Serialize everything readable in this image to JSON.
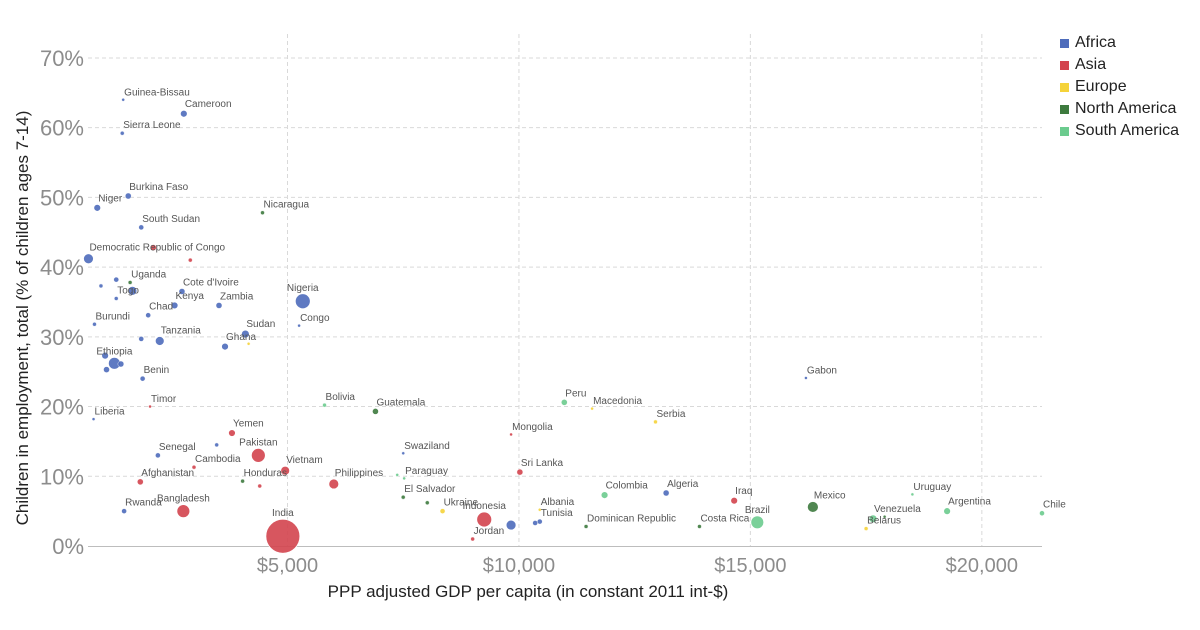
{
  "chart_data": {
    "type": "scatter",
    "xlabel": "PPP adjusted GDP per capita (in constant 2011 int-$)",
    "ylabel": "Children in employment, total (% of children ages 7-14)",
    "xlim": [
      690,
      21300
    ],
    "ylim": [
      0,
      72
    ],
    "xticks": [
      {
        "v": 5000,
        "label": "$5,000"
      },
      {
        "v": 10000,
        "label": "$10,000"
      },
      {
        "v": 15000,
        "label": "$15,000"
      },
      {
        "v": 20000,
        "label": "$20,000"
      }
    ],
    "yticks": [
      {
        "v": 0,
        "label": "0%"
      },
      {
        "v": 10,
        "label": "10%"
      },
      {
        "v": 20,
        "label": "20%"
      },
      {
        "v": 30,
        "label": "30%"
      },
      {
        "v": 40,
        "label": "40%"
      },
      {
        "v": 50,
        "label": "50%"
      },
      {
        "v": 60,
        "label": "60%"
      },
      {
        "v": 70,
        "label": "70%"
      }
    ],
    "grid": true,
    "legend_position": "top-right",
    "legend": [
      {
        "name": "Africa",
        "color": "#4e6cbb"
      },
      {
        "name": "Asia",
        "color": "#d3444e"
      },
      {
        "name": "Europe",
        "color": "#f5d33a"
      },
      {
        "name": "North America",
        "color": "#3d7a3e"
      },
      {
        "name": "South America",
        "color": "#6bcb8e"
      }
    ],
    "points": [
      {
        "label": "Guinea-Bissau",
        "x": 1450,
        "y": 64,
        "r": 1.5,
        "region": "Africa"
      },
      {
        "label": "Cameroon",
        "x": 2760,
        "y": 62,
        "r": 3.5,
        "region": "Africa"
      },
      {
        "label": "Sierra Leone",
        "x": 1430,
        "y": 59.2,
        "r": 2,
        "region": "Africa"
      },
      {
        "label": "Burkina Faso",
        "x": 1560,
        "y": 50.2,
        "r": 3,
        "region": "Africa"
      },
      {
        "label": "Niger",
        "x": 890,
        "y": 48.5,
        "r": 3.5,
        "region": "Africa"
      },
      {
        "label": "Nicaragua",
        "x": 4460,
        "y": 47.8,
        "r": 2,
        "region": "North America"
      },
      {
        "label": "South Sudan",
        "x": 1840,
        "y": 45.7,
        "r": 2.5,
        "region": "Africa"
      },
      {
        "label": "Democratic Republic of Congo",
        "x": 700,
        "y": 41.2,
        "r": 5,
        "region": "Africa"
      },
      {
        "label": "",
        "x": 2100,
        "y": 42.8,
        "r": 3,
        "region": "Asia"
      },
      {
        "label": "",
        "x": 2900,
        "y": 41,
        "r": 2,
        "region": "Asia"
      },
      {
        "label": "",
        "x": 1300,
        "y": 38.2,
        "r": 2.5,
        "region": "Africa"
      },
      {
        "label": "Uganda",
        "x": 1600,
        "y": 37.8,
        "r": 2,
        "region": "North America"
      },
      {
        "label": "",
        "x": 970,
        "y": 37.3,
        "r": 2,
        "region": "Africa"
      },
      {
        "label": "",
        "x": 1650,
        "y": 36.6,
        "r": 4.5,
        "region": "Africa"
      },
      {
        "label": "Togo",
        "x": 1300,
        "y": 35.5,
        "r": 2,
        "region": "Africa"
      },
      {
        "label": "Cote d'Ivoire",
        "x": 2720,
        "y": 36.5,
        "r": 3,
        "region": "Africa"
      },
      {
        "label": "Nigeria",
        "x": 5330,
        "y": 35.1,
        "r": 7.5,
        "region": "Africa"
      },
      {
        "label": "Kenya",
        "x": 2560,
        "y": 34.5,
        "r": 3.5,
        "region": "Africa"
      },
      {
        "label": "Zambia",
        "x": 3520,
        "y": 34.5,
        "r": 3,
        "region": "Africa"
      },
      {
        "label": "Chad",
        "x": 1990,
        "y": 33.1,
        "r": 2.5,
        "region": "Africa"
      },
      {
        "label": "Burundi",
        "x": 830,
        "y": 31.8,
        "r": 2,
        "region": "Africa"
      },
      {
        "label": "Congo",
        "x": 5250,
        "y": 31.6,
        "r": 1.5,
        "region": "Africa"
      },
      {
        "label": "Sudan",
        "x": 4090,
        "y": 30.4,
        "r": 4,
        "region": "Africa"
      },
      {
        "label": "",
        "x": 4160,
        "y": 29,
        "r": 1.5,
        "region": "Europe"
      },
      {
        "label": "",
        "x": 1840,
        "y": 29.7,
        "r": 2.5,
        "region": "Africa"
      },
      {
        "label": "Tanzania",
        "x": 2240,
        "y": 29.4,
        "r": 4.5,
        "region": "Africa"
      },
      {
        "label": "Ghana",
        "x": 3650,
        "y": 28.6,
        "r": 3.5,
        "region": "Africa"
      },
      {
        "label": "",
        "x": 1060,
        "y": 27.3,
        "r": 3.5,
        "region": "Africa"
      },
      {
        "label": "Ethiopia",
        "x": 1260,
        "y": 26.2,
        "r": 6,
        "region": "Africa"
      },
      {
        "label": "",
        "x": 1400,
        "y": 26.1,
        "r": 3,
        "region": "Africa"
      },
      {
        "label": "",
        "x": 1090,
        "y": 25.3,
        "r": 3,
        "region": "Africa"
      },
      {
        "label": "Benin",
        "x": 1870,
        "y": 24,
        "r": 2.5,
        "region": "Africa"
      },
      {
        "label": "Gabon",
        "x": 16200,
        "y": 24.1,
        "r": 1.5,
        "region": "Africa"
      },
      {
        "label": "Bolivia",
        "x": 5800,
        "y": 20.2,
        "r": 2,
        "region": "South America"
      },
      {
        "label": "Peru",
        "x": 10980,
        "y": 20.6,
        "r": 3,
        "region": "South America"
      },
      {
        "label": "Macedonia",
        "x": 11580,
        "y": 19.7,
        "r": 1.5,
        "region": "Europe"
      },
      {
        "label": "Timor",
        "x": 2030,
        "y": 20,
        "r": 1.5,
        "region": "Asia"
      },
      {
        "label": "Guatemala",
        "x": 6900,
        "y": 19.3,
        "r": 3,
        "region": "North America"
      },
      {
        "label": "Liberia",
        "x": 810,
        "y": 18.2,
        "r": 1.5,
        "region": "Africa"
      },
      {
        "label": "Serbia",
        "x": 12950,
        "y": 17.8,
        "r": 2,
        "region": "Europe"
      },
      {
        "label": "Yemen",
        "x": 3800,
        "y": 16.2,
        "r": 3.5,
        "region": "Asia"
      },
      {
        "label": "Mongolia",
        "x": 9830,
        "y": 16,
        "r": 1.5,
        "region": "Asia"
      },
      {
        "label": "",
        "x": 3470,
        "y": 14.5,
        "r": 2,
        "region": "Africa"
      },
      {
        "label": "Swaziland",
        "x": 7500,
        "y": 13.3,
        "r": 1.5,
        "region": "Africa"
      },
      {
        "label": "Senegal",
        "x": 2200,
        "y": 13,
        "r": 2.5,
        "region": "Africa"
      },
      {
        "label": "Pakistan",
        "x": 4370,
        "y": 13,
        "r": 7,
        "region": "Asia"
      },
      {
        "label": "Cambodia",
        "x": 2980,
        "y": 11.3,
        "r": 2,
        "region": "Asia"
      },
      {
        "label": "Vietnam",
        "x": 4950,
        "y": 10.8,
        "r": 4.5,
        "region": "Asia"
      },
      {
        "label": "Sri Lanka",
        "x": 10020,
        "y": 10.6,
        "r": 3,
        "region": "Asia"
      },
      {
        "label": "Paraguay",
        "x": 7520,
        "y": 9.7,
        "r": 1.5,
        "region": "South America"
      },
      {
        "label": "",
        "x": 7370,
        "y": 10.2,
        "r": 1.5,
        "region": "South America"
      },
      {
        "label": "Afghanistan",
        "x": 1820,
        "y": 9.2,
        "r": 3,
        "region": "Asia"
      },
      {
        "label": "Honduras",
        "x": 4030,
        "y": 9.3,
        "r": 2,
        "region": "North America"
      },
      {
        "label": "",
        "x": 4400,
        "y": 8.6,
        "r": 2,
        "region": "Asia"
      },
      {
        "label": "Philippines",
        "x": 6000,
        "y": 8.9,
        "r": 5,
        "region": "Asia"
      },
      {
        "label": "Algeria",
        "x": 13180,
        "y": 7.6,
        "r": 3,
        "region": "Africa"
      },
      {
        "label": "Colombia",
        "x": 11850,
        "y": 7.3,
        "r": 3.5,
        "region": "South America"
      },
      {
        "label": "El Salvador",
        "x": 7500,
        "y": 7,
        "r": 2,
        "region": "North America"
      },
      {
        "label": "Uruguay",
        "x": 18500,
        "y": 7.4,
        "r": 1.5,
        "region": "South America"
      },
      {
        "label": "Iraq",
        "x": 14650,
        "y": 6.5,
        "r": 3.5,
        "region": "Asia"
      },
      {
        "label": "",
        "x": 8020,
        "y": 6.2,
        "r": 2,
        "region": "North America"
      },
      {
        "label": "Mexico",
        "x": 16350,
        "y": 5.6,
        "r": 5.5,
        "region": "North America"
      },
      {
        "label": "Argentina",
        "x": 19250,
        "y": 5,
        "r": 3.5,
        "region": "South America"
      },
      {
        "label": "Chile",
        "x": 21300,
        "y": 4.7,
        "r": 2.5,
        "region": "South America"
      },
      {
        "label": "Ukraine",
        "x": 8350,
        "y": 5,
        "r": 2.5,
        "region": "Europe"
      },
      {
        "label": "Albania",
        "x": 10450,
        "y": 5.2,
        "r": 1.5,
        "region": "Europe"
      },
      {
        "label": "Rwanda",
        "x": 1470,
        "y": 5,
        "r": 2.5,
        "region": "Africa"
      },
      {
        "label": "Bangladesh",
        "x": 2750,
        "y": 5,
        "r": 6.5,
        "region": "Asia"
      },
      {
        "label": "Venezuela",
        "x": 17650,
        "y": 3.9,
        "r": 4,
        "region": "South America"
      },
      {
        "label": "",
        "x": 17900,
        "y": 4.2,
        "r": 1.5,
        "region": "North America"
      },
      {
        "label": "Indonesia",
        "x": 9250,
        "y": 3.8,
        "r": 7.5,
        "region": "Asia"
      },
      {
        "label": "Tunisia",
        "x": 10450,
        "y": 3.5,
        "r": 2.5,
        "region": "Africa"
      },
      {
        "label": "",
        "x": 10350,
        "y": 3.3,
        "r": 2.5,
        "region": "Africa"
      },
      {
        "label": "",
        "x": 9830,
        "y": 3,
        "r": 5,
        "region": "Africa"
      },
      {
        "label": "Brazil",
        "x": 15150,
        "y": 3.4,
        "r": 6.5,
        "region": "South America"
      },
      {
        "label": "Dominican Republic",
        "x": 11450,
        "y": 2.8,
        "r": 2,
        "region": "North America"
      },
      {
        "label": "Costa Rica",
        "x": 13900,
        "y": 2.8,
        "r": 2,
        "region": "North America"
      },
      {
        "label": "Belarus",
        "x": 17500,
        "y": 2.5,
        "r": 2,
        "region": "Europe"
      },
      {
        "label": "India",
        "x": 4900,
        "y": 1.4,
        "r": 17,
        "region": "Asia"
      },
      {
        "label": "Jordan",
        "x": 9000,
        "y": 1,
        "r": 2,
        "region": "Asia"
      }
    ]
  }
}
